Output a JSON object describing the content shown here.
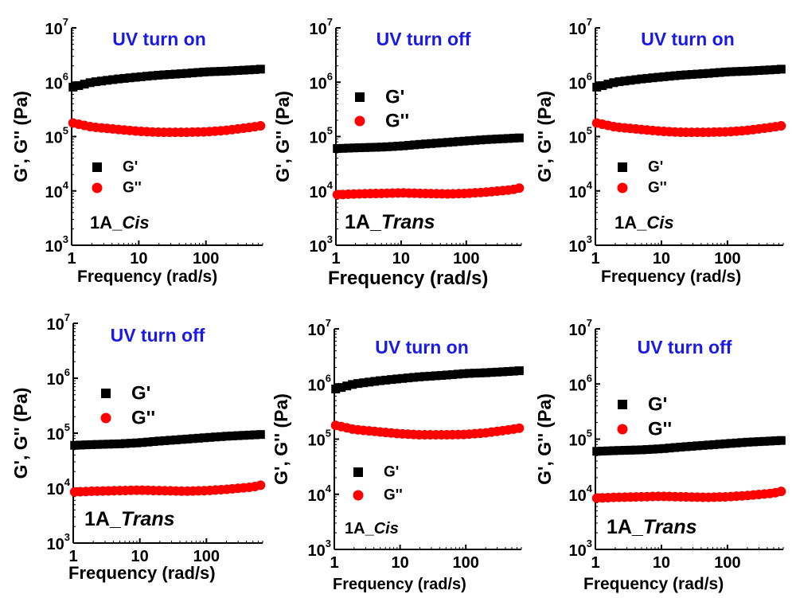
{
  "chart_data": [
    {
      "type": "scatter",
      "title": "UV turn on",
      "annotation": "1A_",
      "annotation_italic": "Cis",
      "xlabel": "Frequency (rad/s)",
      "ylabel": "G', G'' (Pa)",
      "xlim": [
        1,
        700
      ],
      "ylim": [
        1000,
        10000000
      ],
      "xscale": "log",
      "yscale": "log",
      "xticks": [
        "1",
        "10",
        "100"
      ],
      "yticks": [
        {
          "base": "10",
          "exp": "3"
        },
        {
          "base": "10",
          "exp": "4"
        },
        {
          "base": "10",
          "exp": "5"
        },
        {
          "base": "10",
          "exp": "6"
        },
        {
          "base": "10",
          "exp": "7"
        }
      ],
      "legend": {
        "position": "center-left",
        "entries": [
          "G'",
          "G''"
        ]
      },
      "series": [
        {
          "name": "G'",
          "marker": "square",
          "color": "#000000",
          "x": [
            1,
            2,
            5,
            10,
            20,
            50,
            100,
            200,
            500,
            700
          ],
          "y": [
            800000,
            1000000,
            1150000,
            1250000,
            1350000,
            1450000,
            1550000,
            1600000,
            1700000,
            1750000
          ]
        },
        {
          "name": "G''",
          "marker": "circle",
          "color": "#ff0000",
          "x": [
            1,
            2,
            5,
            10,
            20,
            50,
            100,
            200,
            500,
            700
          ],
          "y": [
            180000,
            150000,
            135000,
            125000,
            120000,
            120000,
            122000,
            130000,
            150000,
            160000
          ]
        }
      ]
    },
    {
      "type": "scatter",
      "title": "UV turn off",
      "annotation": "1A_",
      "annotation_italic": "Trans",
      "xlabel": "Frequency (rad/s)",
      "ylabel": "G', G'' (Pa)",
      "xlim": [
        1,
        700
      ],
      "ylim": [
        1000,
        10000000
      ],
      "xscale": "log",
      "yscale": "log",
      "xticks": [
        "1",
        "10",
        "100"
      ],
      "yticks": [
        {
          "base": "10",
          "exp": "3"
        },
        {
          "base": "10",
          "exp": "4"
        },
        {
          "base": "10",
          "exp": "5"
        },
        {
          "base": "10",
          "exp": "6"
        },
        {
          "base": "10",
          "exp": "7"
        }
      ],
      "legend": {
        "position": "upper-left",
        "entries": [
          "G'",
          "G''"
        ]
      },
      "series": [
        {
          "name": "G'",
          "marker": "square",
          "color": "#000000",
          "x": [
            1,
            2,
            5,
            10,
            20,
            50,
            100,
            200,
            500,
            700
          ],
          "y": [
            60000,
            62000,
            64000,
            67000,
            72000,
            78000,
            83000,
            88000,
            93000,
            95000
          ]
        },
        {
          "name": "G''",
          "marker": "circle",
          "color": "#ff0000",
          "x": [
            1,
            2,
            5,
            10,
            20,
            50,
            100,
            200,
            500,
            700
          ],
          "y": [
            8500,
            8800,
            9000,
            9200,
            9000,
            8800,
            9000,
            9500,
            10500,
            11500
          ]
        }
      ]
    },
    {
      "type": "scatter",
      "title": "UV turn on",
      "annotation": "1A_",
      "annotation_italic": "Cis",
      "xlabel": "Frequency (rad/s)",
      "ylabel": "G', G'' (Pa)",
      "xlim": [
        1,
        700
      ],
      "ylim": [
        1000,
        10000000
      ],
      "xscale": "log",
      "yscale": "log",
      "xticks": [
        "1",
        "10",
        "100"
      ],
      "yticks": [
        {
          "base": "10",
          "exp": "3"
        },
        {
          "base": "10",
          "exp": "4"
        },
        {
          "base": "10",
          "exp": "5"
        },
        {
          "base": "10",
          "exp": "6"
        },
        {
          "base": "10",
          "exp": "7"
        }
      ],
      "legend": {
        "position": "center-left",
        "entries": [
          "G'",
          "G''"
        ]
      },
      "series": [
        {
          "name": "G'",
          "marker": "square",
          "color": "#000000",
          "x": [
            1,
            2,
            5,
            10,
            20,
            50,
            100,
            200,
            500,
            700
          ],
          "y": [
            800000,
            1000000,
            1150000,
            1250000,
            1350000,
            1450000,
            1550000,
            1600000,
            1700000,
            1750000
          ]
        },
        {
          "name": "G''",
          "marker": "circle",
          "color": "#ff0000",
          "x": [
            1,
            2,
            5,
            10,
            20,
            50,
            100,
            200,
            500,
            700
          ],
          "y": [
            180000,
            150000,
            135000,
            125000,
            120000,
            120000,
            122000,
            130000,
            150000,
            160000
          ]
        }
      ]
    },
    {
      "type": "scatter",
      "title": "UV turn off",
      "annotation": "1A_",
      "annotation_italic": "Trans",
      "xlabel": "Frequency (rad/s)",
      "ylabel": "G', G'' (Pa)",
      "xlim": [
        1,
        700
      ],
      "ylim": [
        1000,
        10000000
      ],
      "xscale": "log",
      "yscale": "log",
      "xticks": [
        "1",
        "10",
        "100"
      ],
      "yticks": [
        {
          "base": "10",
          "exp": "3"
        },
        {
          "base": "10",
          "exp": "4"
        },
        {
          "base": "10",
          "exp": "5"
        },
        {
          "base": "10",
          "exp": "6"
        },
        {
          "base": "10",
          "exp": "7"
        }
      ],
      "legend": {
        "position": "upper-left",
        "entries": [
          "G'",
          "G''"
        ]
      },
      "series": [
        {
          "name": "G'",
          "marker": "square",
          "color": "#000000",
          "x": [
            1,
            2,
            5,
            10,
            20,
            50,
            100,
            200,
            500,
            700
          ],
          "y": [
            60000,
            62000,
            64000,
            67000,
            72000,
            78000,
            83000,
            88000,
            93000,
            95000
          ]
        },
        {
          "name": "G''",
          "marker": "circle",
          "color": "#ff0000",
          "x": [
            1,
            2,
            5,
            10,
            20,
            50,
            100,
            200,
            500,
            700
          ],
          "y": [
            8500,
            8800,
            9000,
            9200,
            9000,
            8800,
            9000,
            9500,
            10500,
            11500
          ]
        }
      ]
    },
    {
      "type": "scatter",
      "title": "UV turn on",
      "annotation": "1A_",
      "annotation_italic": "Cis",
      "xlabel": "Frequency (rad/s)",
      "ylabel": "G', G'' (Pa)",
      "xlim": [
        1,
        700
      ],
      "ylim": [
        1000,
        10000000
      ],
      "xscale": "log",
      "yscale": "log",
      "xticks": [
        "1",
        "10",
        "100"
      ],
      "yticks": [
        {
          "base": "10",
          "exp": "3"
        },
        {
          "base": "10",
          "exp": "4"
        },
        {
          "base": "10",
          "exp": "5"
        },
        {
          "base": "10",
          "exp": "6"
        },
        {
          "base": "10",
          "exp": "7"
        }
      ],
      "legend": {
        "position": "center-left",
        "entries": [
          "G'",
          "G''"
        ]
      },
      "series": [
        {
          "name": "G'",
          "marker": "square",
          "color": "#000000",
          "x": [
            1,
            2,
            5,
            10,
            20,
            50,
            100,
            200,
            500,
            700
          ],
          "y": [
            800000,
            1000000,
            1150000,
            1250000,
            1350000,
            1450000,
            1550000,
            1600000,
            1700000,
            1750000
          ]
        },
        {
          "name": "G''",
          "marker": "circle",
          "color": "#ff0000",
          "x": [
            1,
            2,
            5,
            10,
            20,
            50,
            100,
            200,
            500,
            700
          ],
          "y": [
            180000,
            150000,
            135000,
            125000,
            120000,
            120000,
            122000,
            130000,
            150000,
            160000
          ]
        }
      ]
    },
    {
      "type": "scatter",
      "title": "UV turn off",
      "annotation": "1A_",
      "annotation_italic": "Trans",
      "xlabel": "Frequency (rad/s)",
      "ylabel": "G', G'' (Pa)",
      "xlim": [
        1,
        700
      ],
      "ylim": [
        1000,
        10000000
      ],
      "xscale": "log",
      "yscale": "log",
      "xticks": [
        "1",
        "10",
        "100"
      ],
      "yticks": [
        {
          "base": "10",
          "exp": "3"
        },
        {
          "base": "10",
          "exp": "4"
        },
        {
          "base": "10",
          "exp": "5"
        },
        {
          "base": "10",
          "exp": "6"
        },
        {
          "base": "10",
          "exp": "7"
        }
      ],
      "legend": {
        "position": "upper-left",
        "entries": [
          "G'",
          "G''"
        ]
      },
      "series": [
        {
          "name": "G'",
          "marker": "square",
          "color": "#000000",
          "x": [
            1,
            2,
            5,
            10,
            20,
            50,
            100,
            200,
            500,
            700
          ],
          "y": [
            60000,
            62000,
            64000,
            67000,
            72000,
            78000,
            83000,
            88000,
            93000,
            95000
          ]
        },
        {
          "name": "G''",
          "marker": "circle",
          "color": "#ff0000",
          "x": [
            1,
            2,
            5,
            10,
            20,
            50,
            100,
            200,
            500,
            700
          ],
          "y": [
            8500,
            8800,
            9000,
            9200,
            9000,
            8800,
            9000,
            9500,
            10500,
            11500
          ]
        }
      ]
    }
  ],
  "colors": {
    "title": "#1a1ae6",
    "g_prime": "#000000",
    "g_double_prime": "#ff0000"
  }
}
